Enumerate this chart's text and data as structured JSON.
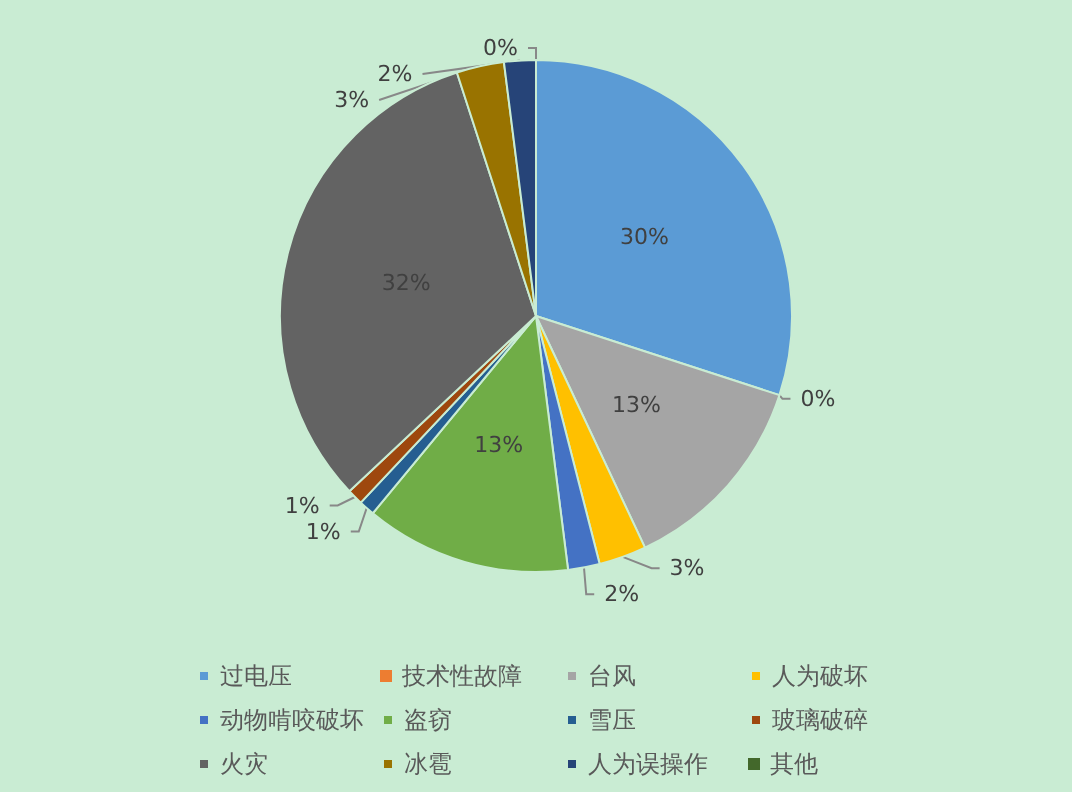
{
  "chart_data": {
    "type": "pie",
    "categories": [
      "过电压",
      "技术性故障",
      "台风",
      "人为破坏",
      "动物啃咬破坏",
      "盗窃",
      "雪压",
      "玻璃破碎",
      "火灾",
      "冰雹",
      "人为误操作",
      "其他"
    ],
    "values": [
      30,
      0,
      13,
      3,
      2,
      13,
      1,
      1,
      32,
      3,
      2,
      0
    ],
    "colors": [
      "#5b9bd5",
      "#ed7d31",
      "#a5a5a5",
      "#ffc000",
      "#4472c4",
      "#70ad47",
      "#255e91",
      "#9e480e",
      "#636363",
      "#997300",
      "#264478",
      "#43682b"
    ],
    "value_labels": [
      "30%",
      "0%",
      "13%",
      "3%",
      "2%",
      "13%",
      "1%",
      "1%",
      "32%",
      "3%",
      "2%",
      "0%"
    ],
    "legend": "bottom"
  }
}
